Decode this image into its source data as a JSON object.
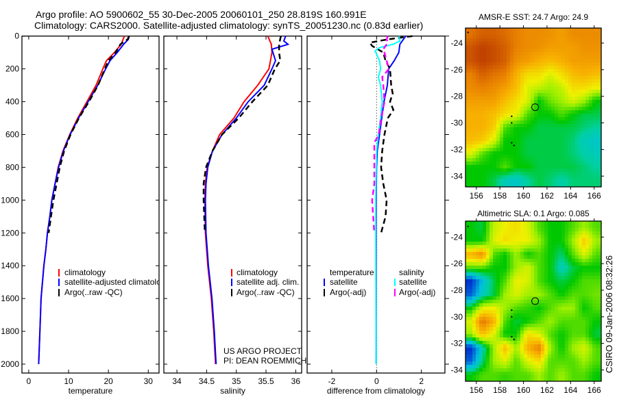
{
  "header": {
    "line1": "Argo profile: AO 5900602_55 30-Dec-2005 20060101_250 28.819S 160.991E",
    "line2": "Climatology: CARS2000. Satellite-adjusted climatology: synTS_20051230.nc (0.83d earlier)"
  },
  "credits": {
    "project": "US ARGO PROJECT",
    "pi": "PI: DEAN ROEMMICH"
  },
  "footer_stamp": "CSIRO 09-Jan-2006 08:32:26",
  "colors": {
    "climatology": "#ff0000",
    "satellite": "#0000ff",
    "argo": "#000000",
    "sal_satellite": "#00ffff",
    "sal_argo": "#ff00ff"
  },
  "chart_data": [
    {
      "type": "line",
      "xlabel": "temperature",
      "ylabel": "",
      "xlim": [
        -1.7,
        32.7
      ],
      "ylim": [
        2054,
        0
      ],
      "xticks": [
        0,
        10,
        20,
        30
      ],
      "yticks": [
        0,
        200,
        400,
        600,
        800,
        1000,
        1200,
        1400,
        1600,
        1800,
        2000
      ],
      "legend": [
        "climatology",
        "satellite-adjusted climatology",
        "Argo(..raw -QC)"
      ],
      "legend_placement": "lower-center",
      "series": [
        {
          "name": "climatology",
          "color": "#ff0000",
          "style": "solid",
          "depth": [
            0,
            50,
            100,
            150,
            200,
            300,
            400,
            500,
            600,
            700,
            800,
            900,
            1000,
            1100,
            1200,
            1300,
            1400,
            1600,
            1800,
            2000
          ],
          "values": [
            24.0,
            23.2,
            21.5,
            19.5,
            18.6,
            16.9,
            14.6,
            12.3,
            10.3,
            8.6,
            7.4,
            6.6,
            5.8,
            5.3,
            4.7,
            4.3,
            3.8,
            3.1,
            2.8,
            2.5
          ]
        },
        {
          "name": "satellite-adjusted climatology",
          "color": "#0000ff",
          "style": "solid",
          "depth": [
            0,
            20,
            50,
            100,
            150,
            200,
            300,
            400,
            500,
            600,
            700,
            800,
            900,
            1000,
            1100,
            1200,
            1300,
            1400,
            1600,
            1800,
            2000
          ],
          "values": [
            25.2,
            25.0,
            23.8,
            22.2,
            20.4,
            19.3,
            17.3,
            14.9,
            12.5,
            10.4,
            8.7,
            7.5,
            6.6,
            5.8,
            5.3,
            4.7,
            4.3,
            3.8,
            3.1,
            2.8,
            2.5
          ]
        },
        {
          "name": "Argo(..raw -QC)",
          "color": "#000000",
          "style": "dashed",
          "depth": [
            0,
            20,
            50,
            100,
            150,
            200,
            300,
            400,
            500,
            600,
            700,
            800,
            900,
            1000,
            1100,
            1200
          ],
          "values": [
            25.2,
            24.8,
            23.0,
            21.8,
            20.0,
            19.1,
            17.4,
            15.1,
            12.6,
            10.5,
            8.9,
            7.8,
            7.0,
            6.2,
            5.6,
            5.0
          ]
        }
      ]
    },
    {
      "type": "line",
      "xlabel": "salinity",
      "ylabel": "",
      "xlim": [
        33.78,
        36.1
      ],
      "ylim": [
        2054,
        0
      ],
      "xticks": [
        34,
        34.5,
        35,
        35.5,
        36
      ],
      "legend": [
        "climatology",
        "satellite adj. clim.",
        "Argo(..raw -QC)"
      ],
      "legend_placement": "lower-center",
      "series": [
        {
          "name": "climatology",
          "color": "#ff0000",
          "style": "solid",
          "depth": [
            0,
            50,
            100,
            200,
            300,
            400,
            500,
            600,
            700,
            800,
            900,
            1000,
            1200,
            1400,
            1600,
            1800,
            2000
          ],
          "values": [
            35.53,
            35.59,
            35.6,
            35.55,
            35.36,
            35.13,
            34.96,
            34.72,
            34.6,
            34.51,
            34.48,
            34.47,
            34.48,
            34.52,
            34.58,
            34.62,
            34.65
          ]
        },
        {
          "name": "satellite adj. clim.",
          "color": "#0000ff",
          "style": "solid",
          "depth": [
            0,
            30,
            50,
            80,
            150,
            200,
            300,
            400,
            500,
            600,
            700,
            800,
            900,
            1000,
            1200,
            1400,
            1600,
            1800,
            2000
          ],
          "values": [
            35.83,
            35.8,
            35.87,
            35.6,
            35.66,
            35.6,
            35.47,
            35.2,
            35.0,
            34.76,
            34.6,
            34.52,
            34.49,
            34.48,
            34.49,
            34.53,
            34.59,
            34.63,
            34.66
          ]
        },
        {
          "name": "Argo(..raw -QC)",
          "color": "#000000",
          "style": "dashed",
          "depth": [
            0,
            50,
            100,
            150,
            200,
            300,
            400,
            500,
            600,
            700,
            800,
            900,
            1000,
            1100,
            1200
          ],
          "values": [
            35.75,
            35.72,
            35.72,
            35.74,
            35.65,
            35.53,
            35.27,
            35.04,
            34.76,
            34.6,
            34.49,
            34.45,
            34.45,
            34.46,
            34.47
          ]
        }
      ]
    },
    {
      "type": "line",
      "xlabel": "difference from climatology",
      "ylabel": "",
      "xlim": [
        -3.1,
        3.05
      ],
      "ylim": [
        2054,
        0
      ],
      "xticks": [
        -2,
        0,
        2
      ],
      "legend_headers": [
        "temperature",
        "salinity"
      ],
      "legend": [
        "satellite",
        "Argo(-adj)",
        "satellite",
        "Argo(-adj)"
      ],
      "legend_placement": "lower-center",
      "zero_line": "dotted",
      "series": [
        {
          "name": "temperature satellite",
          "color": "#0000ff",
          "style": "solid",
          "depth": [
            0,
            50,
            100,
            150,
            200,
            250,
            300,
            400,
            500,
            600,
            700,
            800,
            1000,
            1500,
            2000
          ],
          "values": [
            1.3,
            1.04,
            0.99,
            0.79,
            0.54,
            0.51,
            0.48,
            0.33,
            0.23,
            0.13,
            0.03,
            0.0,
            -0.02,
            -0.02,
            -0.02
          ]
        },
        {
          "name": "temperature Argo(-adj)",
          "color": "#000000",
          "style": "dashed",
          "depth": [
            0,
            20,
            40,
            60,
            100,
            150,
            200,
            300,
            350,
            400,
            450,
            500,
            600,
            700,
            800,
            900,
            1000,
            1100,
            1200
          ],
          "values": [
            1.6,
            0.5,
            -0.3,
            -0.2,
            0.3,
            0.4,
            0.6,
            0.65,
            0.72,
            0.6,
            0.75,
            0.5,
            0.35,
            0.25,
            0.2,
            0.3,
            0.45,
            0.4,
            0.2
          ]
        },
        {
          "name": "salinity satellite",
          "color": "#00ffff",
          "style": "solid",
          "depth": [
            0,
            30,
            50,
            70,
            90,
            150,
            200,
            250,
            300,
            400,
            500,
            600,
            700,
            1000,
            1500,
            2000
          ],
          "values": [
            1.0,
            1.04,
            0.74,
            0.13,
            -0.07,
            0.13,
            0.18,
            0.08,
            0.18,
            0.25,
            0.18,
            0.08,
            0.0,
            -0.04,
            -0.03,
            -0.02
          ]
        },
        {
          "name": "salinity Argo(-adj)",
          "color": "#ff00ff",
          "style": "dashed",
          "depth": [
            0,
            20,
            40,
            80,
            100,
            150,
            200,
            250,
            300,
            400,
            500,
            600,
            650,
            700,
            900,
            1000,
            1200
          ],
          "values": [
            0.5,
            0.45,
            0.5,
            0.3,
            0.35,
            0.45,
            0.55,
            0.25,
            0.3,
            0.35,
            0.2,
            0.1,
            -0.1,
            -0.1,
            -0.1,
            -0.2,
            -0.1
          ]
        }
      ]
    },
    {
      "type": "heatmap",
      "title": "AMSR-E SST: 24.7 Argo: 24.9",
      "lon_range": [
        155.08,
        166.6
      ],
      "lat_range": [
        -22.87,
        -34.81
      ],
      "xticks": [
        156,
        158,
        160,
        162,
        164,
        166
      ],
      "yticks": [
        -24,
        -26,
        -28,
        -30,
        -32,
        -34
      ],
      "ytick_labels": [
        "-24",
        "-26",
        "-28",
        "-30",
        "-32",
        "-34"
      ],
      "argo_position": {
        "lon": 160.991,
        "lat": -28.819
      },
      "coast_points": [
        [
          155.3,
          -23.2
        ],
        [
          159.0,
          -29.5
        ],
        [
          159.0,
          -30.0
        ],
        [
          159.0,
          -31.5
        ],
        [
          159.2,
          -31.7
        ]
      ],
      "field_color_index": [
        [
          0.82,
          0.85,
          0.85,
          0.83,
          0.8,
          0.78,
          0.78,
          0.77,
          0.75,
          0.78,
          0.78,
          0.78
        ],
        [
          0.87,
          0.9,
          0.88,
          0.85,
          0.8,
          0.78,
          0.77,
          0.75,
          0.75,
          0.75,
          0.77,
          0.77
        ],
        [
          0.87,
          0.9,
          0.88,
          0.85,
          0.77,
          0.75,
          0.72,
          0.7,
          0.72,
          0.75,
          0.75,
          0.75
        ],
        [
          0.8,
          0.85,
          0.82,
          0.8,
          0.72,
          0.65,
          0.65,
          0.6,
          0.65,
          0.7,
          0.72,
          0.7
        ],
        [
          0.78,
          0.8,
          0.78,
          0.75,
          0.7,
          0.6,
          0.58,
          0.55,
          0.58,
          0.65,
          0.65,
          0.62
        ],
        [
          0.75,
          0.75,
          0.75,
          0.7,
          0.65,
          0.6,
          0.45,
          0.52,
          0.55,
          0.6,
          0.55,
          0.45
        ],
        [
          0.72,
          0.72,
          0.7,
          0.65,
          0.62,
          0.5,
          0.45,
          0.45,
          0.5,
          0.45,
          0.42,
          0.42
        ],
        [
          0.72,
          0.72,
          0.68,
          0.5,
          0.45,
          0.45,
          0.42,
          0.42,
          0.42,
          0.42,
          0.4,
          0.38
        ],
        [
          0.7,
          0.68,
          0.6,
          0.45,
          0.45,
          0.42,
          0.42,
          0.42,
          0.42,
          0.4,
          0.35,
          0.33
        ],
        [
          0.6,
          0.5,
          0.45,
          0.45,
          0.45,
          0.42,
          0.42,
          0.42,
          0.42,
          0.4,
          0.37,
          0.35
        ],
        [
          0.45,
          0.45,
          0.45,
          0.5,
          0.45,
          0.45,
          0.42,
          0.42,
          0.42,
          0.42,
          0.4,
          0.38
        ],
        [
          0.45,
          0.45,
          0.42,
          0.35,
          0.33,
          0.38,
          0.42,
          0.4,
          0.37,
          0.4,
          0.4,
          0.4
        ]
      ]
    },
    {
      "type": "heatmap",
      "title": "Altimetric SLA: 0.1 Argo: 0.085",
      "lon_range": [
        155.08,
        166.6
      ],
      "lat_range": [
        -22.8,
        -34.85
      ],
      "xticks": [
        156,
        158,
        160,
        162,
        164,
        166
      ],
      "yticks": [
        -24,
        -26,
        -28,
        -30,
        -32,
        -34
      ],
      "ytick_labels": [
        "-24",
        "-26",
        "-28",
        "-30",
        "-32",
        "-34"
      ],
      "argo_position": {
        "lon": 160.991,
        "lat": -28.819
      },
      "coast_points": [
        [
          155.3,
          -23.2
        ],
        [
          159.0,
          -29.5
        ],
        [
          159.0,
          -30.0
        ],
        [
          159.0,
          -31.5
        ],
        [
          159.2,
          -31.7
        ]
      ],
      "field_color_index": [
        [
          0.45,
          0.42,
          0.58,
          0.62,
          0.65,
          0.6,
          0.5,
          0.45,
          0.45,
          0.5,
          0.55,
          0.5
        ],
        [
          0.45,
          0.45,
          0.6,
          0.65,
          0.62,
          0.62,
          0.55,
          0.45,
          0.45,
          0.55,
          0.68,
          0.55
        ],
        [
          0.72,
          0.78,
          0.5,
          0.45,
          0.55,
          0.45,
          0.5,
          0.45,
          0.4,
          0.5,
          0.6,
          0.5
        ],
        [
          0.5,
          0.5,
          0.45,
          0.45,
          0.55,
          0.6,
          0.5,
          0.45,
          0.35,
          0.42,
          0.45,
          0.45
        ],
        [
          0.15,
          0.3,
          0.42,
          0.5,
          0.62,
          0.6,
          0.5,
          0.45,
          0.42,
          0.45,
          0.5,
          0.5
        ],
        [
          0.2,
          0.35,
          0.42,
          0.55,
          0.6,
          0.55,
          0.55,
          0.5,
          0.45,
          0.5,
          0.5,
          0.52
        ],
        [
          0.45,
          0.6,
          0.62,
          0.55,
          0.5,
          0.48,
          0.45,
          0.5,
          0.55,
          0.55,
          0.45,
          0.5
        ],
        [
          0.6,
          0.82,
          0.72,
          0.5,
          0.42,
          0.45,
          0.5,
          0.55,
          0.5,
          0.5,
          0.5,
          0.45
        ],
        [
          0.55,
          0.7,
          0.6,
          0.45,
          0.45,
          0.65,
          0.6,
          0.5,
          0.45,
          0.5,
          0.5,
          0.42
        ],
        [
          0.15,
          0.35,
          0.55,
          0.7,
          0.55,
          0.72,
          0.8,
          0.55,
          0.45,
          0.55,
          0.6,
          0.5
        ],
        [
          0.2,
          0.4,
          0.55,
          0.6,
          0.5,
          0.6,
          0.65,
          0.5,
          0.5,
          0.5,
          0.55,
          0.5
        ],
        [
          0.45,
          0.5,
          0.5,
          0.48,
          0.5,
          0.5,
          0.55,
          0.5,
          0.55,
          0.5,
          0.5,
          0.45
        ]
      ]
    }
  ]
}
